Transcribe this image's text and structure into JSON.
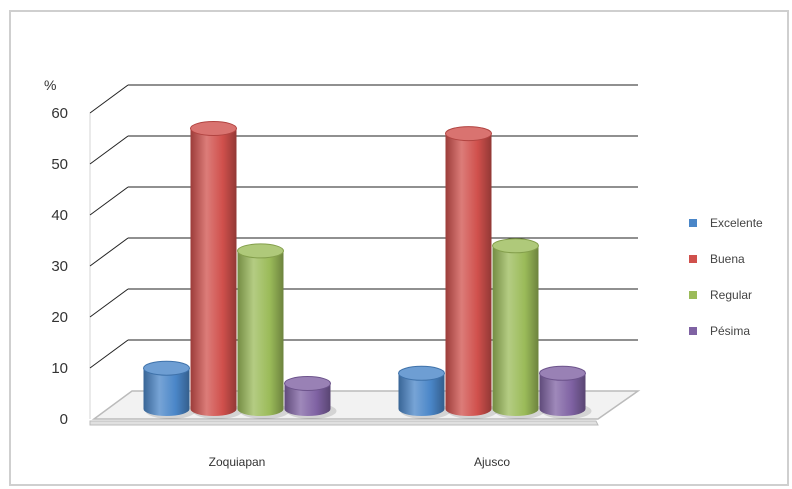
{
  "chart_data": {
    "type": "bar",
    "title": "",
    "xlabel": "",
    "ylabel": "%",
    "ylim": [
      0,
      60
    ],
    "yticks": [
      0,
      10,
      20,
      30,
      40,
      50,
      60
    ],
    "categories": [
      "Zoquiapan",
      "Ajusco"
    ],
    "series": [
      {
        "name": "Excelente",
        "values": [
          8,
          7
        ],
        "color": "#4a86c8"
      },
      {
        "name": "Buena",
        "values": [
          55,
          54
        ],
        "color": "#d0504c"
      },
      {
        "name": "Regular",
        "values": [
          31,
          32
        ],
        "color": "#9bbb59"
      },
      {
        "name": "Pésima",
        "values": [
          5,
          7
        ],
        "color": "#7f62a3"
      }
    ],
    "grid": true,
    "legend_position": "right",
    "style": "3d-cylinder"
  }
}
